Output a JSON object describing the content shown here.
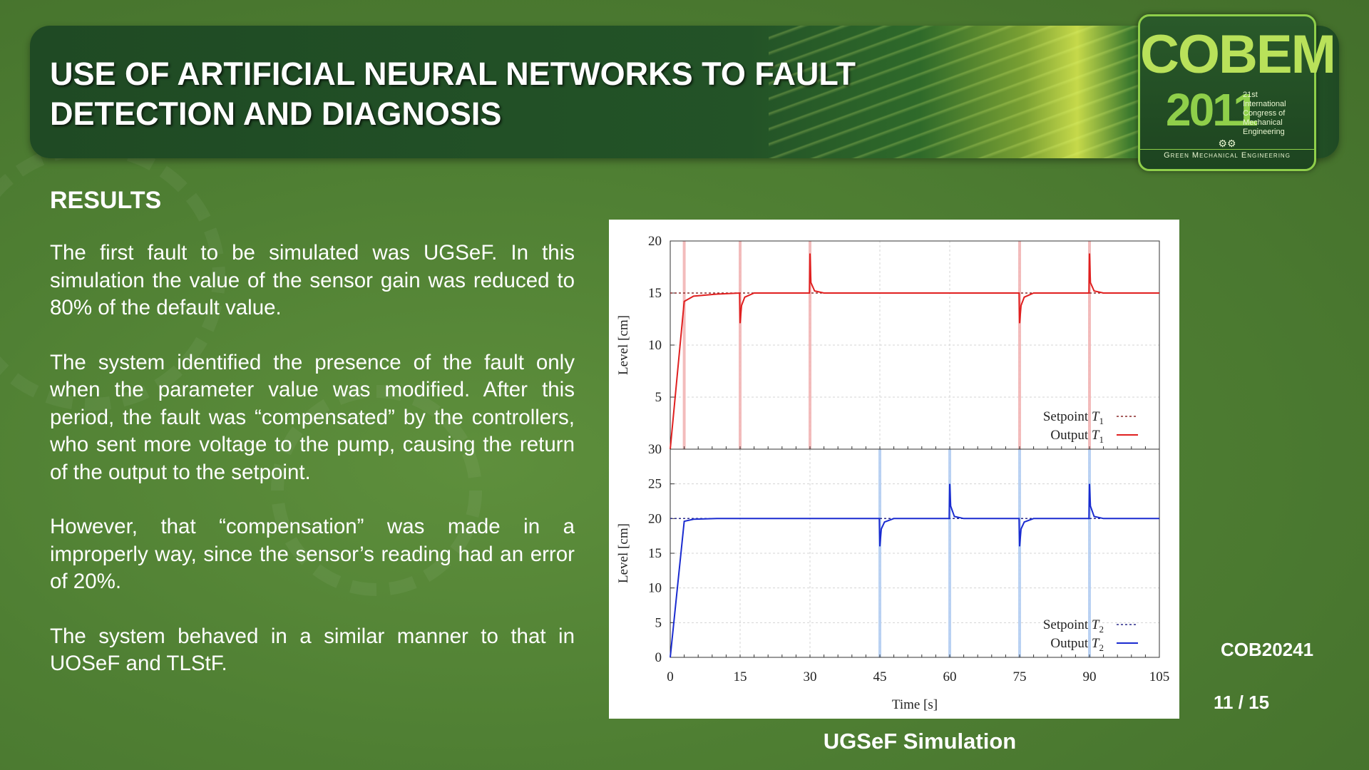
{
  "header": {
    "title_line1": "USE OF ARTIFICIAL NEURAL NETWORKS TO FAULT",
    "title_line2": "DETECTION AND DIAGNOSIS"
  },
  "logo": {
    "name": "COBEM",
    "year": "2011",
    "congress": [
      "21st",
      "International",
      "Congress of",
      "Mechanical",
      "Engineering"
    ],
    "tagline": "Green Mechanical Engineering"
  },
  "section": {
    "heading": "RESULTS",
    "paragraphs": [
      "The first fault to be simulated was UGSeF. In this simulation the value of the sensor gain was reduced to 80% of the default value.",
      "The system identified the presence of the fault only when the parameter value was modified. After this period, the fault was “compensated” by the controllers, who sent more voltage to the pump, causing the return of the output to the setpoint.",
      "However, that “compensation” was made in a improperly way, since the sensor’s reading had an error of 20%.",
      "The system behaved in a similar manner to that in UOSeF and TLStF."
    ]
  },
  "figure": {
    "caption": "UGSeF Simulation"
  },
  "footer": {
    "code": "COB20241",
    "page": "11 / 15"
  },
  "colors": {
    "title_text": "#ffffff",
    "tank1_series": "#e02020",
    "tank2_series": "#1a2bd0",
    "tank1_fault_marker": "#f2b5b5",
    "tank2_fault_marker": "#b3cdf2"
  },
  "chart_data": [
    {
      "type": "line",
      "xlabel": "",
      "ylabel": "Level [cm]",
      "xlim": [
        0,
        105
      ],
      "ylim": [
        0,
        20
      ],
      "yticks": [
        0,
        5,
        10,
        15,
        20
      ],
      "ytick_labels": [
        "",
        "5",
        "10",
        "15",
        "20"
      ],
      "legend": "bottom-right",
      "grid": true,
      "fault_markers": [
        3,
        15,
        30,
        75,
        90
      ],
      "series": [
        {
          "name": "Setpoint T1",
          "style": "dashed",
          "x": [
            0,
            105
          ],
          "y": [
            15,
            15
          ]
        },
        {
          "name": "Output T1",
          "style": "solid",
          "x": [
            0,
            3,
            5,
            10,
            14.9,
            15,
            15.3,
            16,
            18,
            29.9,
            30,
            30.2,
            31,
            33,
            74.9,
            75,
            75.3,
            76,
            78,
            89.9,
            90,
            90.2,
            91,
            93,
            105
          ],
          "y": [
            0,
            14.2,
            14.7,
            14.9,
            15.0,
            12.1,
            13.8,
            14.6,
            15.0,
            15.0,
            18.8,
            16.0,
            15.2,
            15.0,
            15.0,
            12.1,
            13.8,
            14.6,
            15.0,
            15.0,
            18.8,
            16.0,
            15.2,
            15.0,
            15.0
          ]
        }
      ]
    },
    {
      "type": "line",
      "xlabel": "Time [s]",
      "ylabel": "Level [cm]",
      "xlim": [
        0,
        105
      ],
      "ylim": [
        0,
        30
      ],
      "xticks": [
        0,
        15,
        30,
        45,
        60,
        75,
        90,
        105
      ],
      "yticks": [
        0,
        5,
        10,
        15,
        20,
        25,
        30
      ],
      "legend": "bottom-right",
      "grid": true,
      "fault_markers": [
        45,
        60,
        75,
        90
      ],
      "series": [
        {
          "name": "Setpoint T2",
          "style": "dashed",
          "x": [
            0,
            105
          ],
          "y": [
            20,
            20
          ]
        },
        {
          "name": "Output T2",
          "style": "solid",
          "x": [
            0,
            3,
            5,
            10,
            44.9,
            45,
            45.3,
            46,
            48,
            59.9,
            60,
            60.2,
            61,
            63,
            74.9,
            75,
            75.3,
            76,
            78,
            89.9,
            90,
            90.2,
            91,
            93,
            105
          ],
          "y": [
            0,
            19.6,
            19.9,
            20.0,
            20.0,
            16.0,
            18.5,
            19.5,
            20.0,
            20.0,
            25.0,
            21.8,
            20.3,
            20.0,
            20.0,
            16.0,
            18.5,
            19.5,
            20.0,
            20.0,
            25.0,
            21.8,
            20.3,
            20.0,
            20.0
          ]
        }
      ]
    }
  ]
}
